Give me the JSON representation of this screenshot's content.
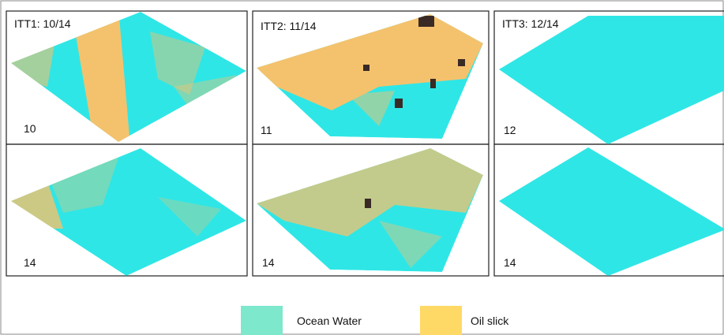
{
  "panels": [
    {
      "title": "ITT1: 10/14",
      "top_label": "10",
      "bottom_label": "14"
    },
    {
      "title": "ITT2: 11/14",
      "top_label": "11",
      "bottom_label": "14"
    },
    {
      "title": "ITT3: 12/14",
      "top_label": "12",
      "bottom_label": "14"
    }
  ],
  "legend": [
    {
      "label": "Ocean Water",
      "color": "#7de8cc"
    },
    {
      "label": "Oil slick",
      "color": "#ffd966"
    }
  ]
}
